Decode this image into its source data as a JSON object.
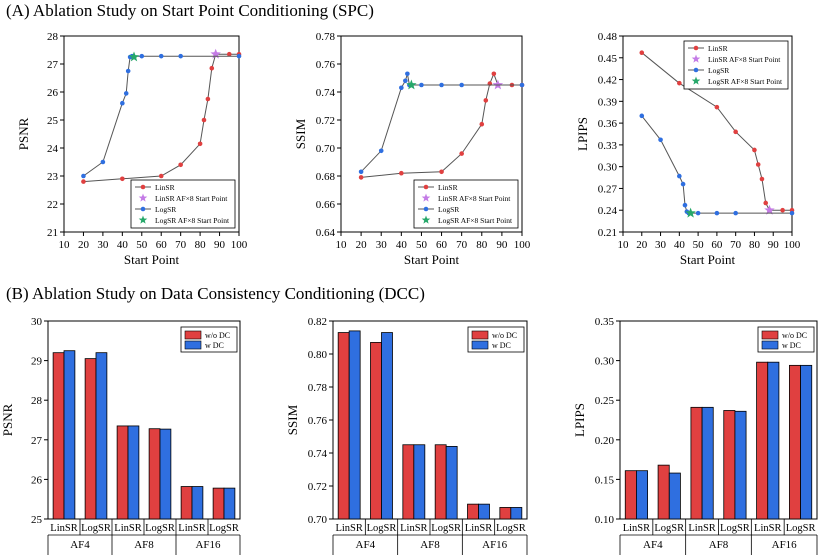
{
  "sections": {
    "a_title": "(A) Ablation Study on Start Point Conditioning (SPC)",
    "b_title": "(B) Ablation Study on Data Consistency Conditioning (DCC)"
  },
  "colors": {
    "red": "#e04040",
    "blue": "#2f6fe0",
    "purple": "#c47be6",
    "green": "#27a86a",
    "line": "#555555"
  },
  "chart_data": [
    {
      "id": "spc-psnr",
      "type": "line",
      "xlabel": "Start Point",
      "ylabel": "PSNR",
      "xlim": [
        10,
        100
      ],
      "ylim": [
        21,
        28
      ],
      "xticks": [
        10,
        20,
        30,
        40,
        50,
        60,
        70,
        80,
        90,
        100
      ],
      "yticks": [
        21,
        22,
        23,
        24,
        25,
        26,
        27,
        28
      ],
      "ydec": 0,
      "legend": "bottom-right",
      "series": [
        {
          "name": "LinSR",
          "color": "red",
          "marker": "circle",
          "x": [
            20,
            40,
            60,
            70,
            80,
            82,
            84,
            86,
            88,
            95,
            100
          ],
          "y": [
            22.8,
            22.9,
            23.0,
            23.4,
            24.15,
            25.0,
            25.75,
            26.85,
            27.35,
            27.35,
            27.35
          ]
        },
        {
          "name": "LinSR AF×8 Start Point",
          "color": "purple",
          "marker": "star",
          "x": [
            88
          ],
          "y": [
            27.35
          ]
        },
        {
          "name": "LogSR",
          "color": "blue",
          "marker": "circle",
          "x": [
            20,
            30,
            40,
            42,
            43,
            44,
            45,
            50,
            60,
            70,
            100
          ],
          "y": [
            23.0,
            23.5,
            25.6,
            25.95,
            26.75,
            27.25,
            27.28,
            27.28,
            27.28,
            27.28,
            27.28
          ]
        },
        {
          "name": "LogSR AF×8 Start Point",
          "color": "green",
          "marker": "star",
          "x": [
            46
          ],
          "y": [
            27.25
          ]
        }
      ]
    },
    {
      "id": "spc-ssim",
      "type": "line",
      "xlabel": "Start Point",
      "ylabel": "SSIM",
      "xlim": [
        10,
        100
      ],
      "ylim": [
        0.64,
        0.78
      ],
      "xticks": [
        10,
        20,
        30,
        40,
        50,
        60,
        70,
        80,
        90,
        100
      ],
      "yticks": [
        0.64,
        0.66,
        0.68,
        0.7,
        0.72,
        0.74,
        0.76,
        0.78
      ],
      "ydec": 2,
      "legend": "bottom-right",
      "series": [
        {
          "name": "LinSR",
          "color": "red",
          "marker": "circle",
          "x": [
            20,
            40,
            60,
            70,
            80,
            82,
            84,
            86,
            88,
            95,
            100
          ],
          "y": [
            0.679,
            0.682,
            0.683,
            0.696,
            0.717,
            0.734,
            0.746,
            0.753,
            0.745,
            0.745,
            0.745
          ]
        },
        {
          "name": "LinSR AF×8 Start Point",
          "color": "purple",
          "marker": "star",
          "x": [
            88
          ],
          "y": [
            0.745
          ]
        },
        {
          "name": "LogSR",
          "color": "blue",
          "marker": "circle",
          "x": [
            20,
            30,
            40,
            42,
            43,
            44,
            45,
            50,
            60,
            70,
            100
          ],
          "y": [
            0.683,
            0.698,
            0.743,
            0.748,
            0.753,
            0.745,
            0.745,
            0.745,
            0.745,
            0.745,
            0.745
          ]
        },
        {
          "name": "LogSR AF×8 Start Point",
          "color": "green",
          "marker": "star",
          "x": [
            45
          ],
          "y": [
            0.745
          ]
        }
      ]
    },
    {
      "id": "spc-lpips",
      "type": "line",
      "xlabel": "Start Point",
      "ylabel": "LPIPS",
      "xlim": [
        10,
        100
      ],
      "ylim": [
        0.21,
        0.48
      ],
      "xticks": [
        10,
        20,
        30,
        40,
        50,
        60,
        70,
        80,
        90,
        100
      ],
      "yticks": [
        0.21,
        0.24,
        0.27,
        0.3,
        0.33,
        0.36,
        0.39,
        0.42,
        0.45,
        0.48
      ],
      "ydec": 2,
      "legend": "top-right",
      "series": [
        {
          "name": "LinSR",
          "color": "red",
          "marker": "circle",
          "x": [
            20,
            40,
            60,
            70,
            80,
            82,
            84,
            86,
            88,
            95,
            100
          ],
          "y": [
            0.457,
            0.415,
            0.382,
            0.348,
            0.323,
            0.303,
            0.283,
            0.25,
            0.24,
            0.24,
            0.24
          ]
        },
        {
          "name": "LinSR AF×8 Start Point",
          "color": "purple",
          "marker": "star",
          "x": [
            88
          ],
          "y": [
            0.24
          ]
        },
        {
          "name": "LogSR",
          "color": "blue",
          "marker": "circle",
          "x": [
            20,
            30,
            40,
            42,
            43,
            44,
            45,
            50,
            60,
            70,
            100
          ],
          "y": [
            0.37,
            0.337,
            0.287,
            0.276,
            0.247,
            0.238,
            0.236,
            0.236,
            0.236,
            0.236,
            0.236
          ]
        },
        {
          "name": "LogSR AF×8 Start Point",
          "color": "green",
          "marker": "star",
          "x": [
            46
          ],
          "y": [
            0.236
          ]
        }
      ]
    },
    {
      "id": "dcc-psnr",
      "type": "bar",
      "ylabel": "PSNR",
      "ylim": [
        25,
        30
      ],
      "yticks": [
        25,
        26,
        27,
        28,
        29,
        30
      ],
      "ydec": 0,
      "legend": "top-right",
      "groups": [
        "AF4",
        "AF8",
        "AF16"
      ],
      "subgroups": [
        "LinSR",
        "LogSR"
      ],
      "series": [
        {
          "name": "w/o DC",
          "color": "red",
          "values": [
            29.2,
            29.05,
            27.35,
            27.28,
            25.82,
            25.78
          ]
        },
        {
          "name": "w DC",
          "color": "blue",
          "values": [
            29.25,
            29.2,
            27.35,
            27.27,
            25.82,
            25.78
          ]
        }
      ]
    },
    {
      "id": "dcc-ssim",
      "type": "bar",
      "ylabel": "SSIM",
      "ylim": [
        0.7,
        0.82
      ],
      "yticks": [
        0.7,
        0.72,
        0.74,
        0.76,
        0.78,
        0.8,
        0.82
      ],
      "ydec": 2,
      "legend": "top-right",
      "groups": [
        "AF4",
        "AF8",
        "AF16"
      ],
      "subgroups": [
        "LinSR",
        "LogSR"
      ],
      "series": [
        {
          "name": "w/o DC",
          "color": "red",
          "values": [
            0.813,
            0.807,
            0.745,
            0.745,
            0.709,
            0.707
          ]
        },
        {
          "name": "w DC",
          "color": "blue",
          "values": [
            0.814,
            0.813,
            0.745,
            0.744,
            0.709,
            0.707
          ]
        }
      ]
    },
    {
      "id": "dcc-lpips",
      "type": "bar",
      "ylabel": "LPIPS",
      "ylim": [
        0.1,
        0.35
      ],
      "yticks": [
        0.1,
        0.15,
        0.2,
        0.25,
        0.3,
        0.35
      ],
      "ydec": 2,
      "legend": "top-right",
      "groups": [
        "AF4",
        "AF8",
        "AF16"
      ],
      "subgroups": [
        "LinSR",
        "LogSR"
      ],
      "series": [
        {
          "name": "w/o DC",
          "color": "red",
          "values": [
            0.161,
            0.168,
            0.241,
            0.237,
            0.298,
            0.294
          ]
        },
        {
          "name": "w DC",
          "color": "blue",
          "values": [
            0.161,
            0.158,
            0.241,
            0.236,
            0.298,
            0.294
          ]
        }
      ]
    }
  ]
}
